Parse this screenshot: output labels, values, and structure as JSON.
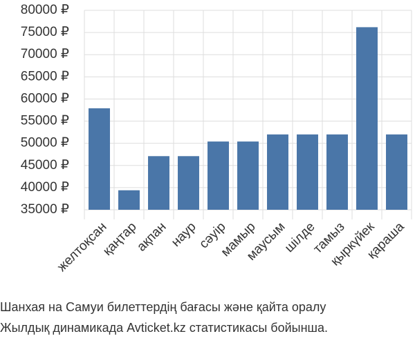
{
  "chart_data": {
    "type": "bar",
    "categories": [
      "желтоқсан",
      "қаңтар",
      "ақпан",
      "наур",
      "сәуір",
      "мамыр",
      "маусым",
      "шілде",
      "тамыз",
      "қыркүйек",
      "қараша"
    ],
    "values": [
      57900,
      39400,
      47100,
      47100,
      50400,
      50400,
      52000,
      52000,
      52000,
      76200,
      52000
    ],
    "color": "#4a76a8",
    "ylim": [
      35000,
      80000
    ],
    "yticks": [
      {
        "value": 35000,
        "label": "35000 ₽"
      },
      {
        "value": 40000,
        "label": "40000 ₽"
      },
      {
        "value": 45000,
        "label": "45000 ₽"
      },
      {
        "value": 50000,
        "label": "50000 ₽"
      },
      {
        "value": 55000,
        "label": "55000 ₽"
      },
      {
        "value": 60000,
        "label": "60000 ₽"
      },
      {
        "value": 65000,
        "label": "65000 ₽"
      },
      {
        "value": 70000,
        "label": "70000 ₽"
      },
      {
        "value": 75000,
        "label": "75000 ₽"
      },
      {
        "value": 80000,
        "label": "80000 ₽"
      }
    ],
    "grid": true,
    "caption": [
      "Шанхая на Самуи билеттердің бағасы және қайта оралу",
      "Жылдық динамикада Avticket.kz статистикасы бойынша."
    ]
  }
}
